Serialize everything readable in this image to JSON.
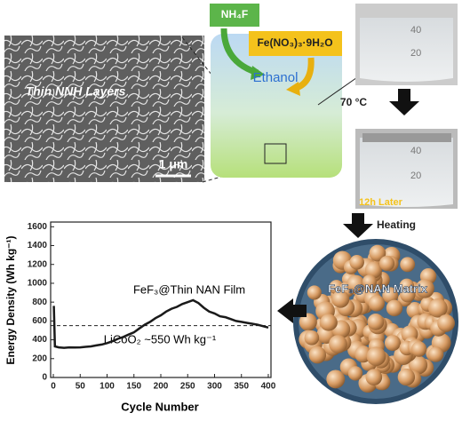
{
  "chart_data": {
    "type": "line",
    "x": [
      1,
      3,
      10,
      20,
      30,
      40,
      50,
      60,
      70,
      80,
      90,
      100,
      110,
      120,
      130,
      140,
      150,
      160,
      170,
      180,
      190,
      200,
      210,
      220,
      230,
      240,
      250,
      260,
      270,
      280,
      290,
      300,
      310,
      320,
      330,
      340,
      350,
      360,
      370,
      380,
      390,
      400
    ],
    "values": [
      760,
      330,
      320,
      315,
      320,
      318,
      320,
      325,
      330,
      340,
      350,
      365,
      385,
      410,
      430,
      455,
      480,
      520,
      560,
      590,
      630,
      660,
      700,
      730,
      750,
      780,
      800,
      820,
      790,
      740,
      700,
      680,
      650,
      640,
      620,
      600,
      590,
      580,
      570,
      560,
      545,
      530
    ],
    "color": "#1a1a1a",
    "xlim": [
      -5,
      405
    ],
    "xticks": [
      0,
      50,
      100,
      150,
      200,
      250,
      300,
      350,
      400
    ],
    "ylim": [
      0,
      1650
    ],
    "yticks": [
      0,
      200,
      400,
      600,
      800,
      1000,
      1200,
      1400,
      1600
    ],
    "xlabel": "Cycle Number",
    "ylabel": "Energy Density (Wh kg⁻¹)",
    "annotation": "FeF₃@Thin NAN Film",
    "reference_line": {
      "value": 550,
      "label": "LiCoO₂ ~550 Wh kg⁻¹"
    }
  },
  "labels": {
    "reagent_1": "NH₄F",
    "reagent_2": "Fe(NO₃)₃·9H₂O",
    "solvent": "Ethanol",
    "sem_caption": "Thin NNH Layers",
    "scale_bar": "1 μm",
    "temperature": "70 °C",
    "time": "12h Later",
    "step": "Heating",
    "product": "FeF₃@NAN Matrix",
    "beaker_1_marks": [
      "40",
      "20"
    ],
    "beaker_2_marks": [
      "40",
      "20"
    ]
  }
}
